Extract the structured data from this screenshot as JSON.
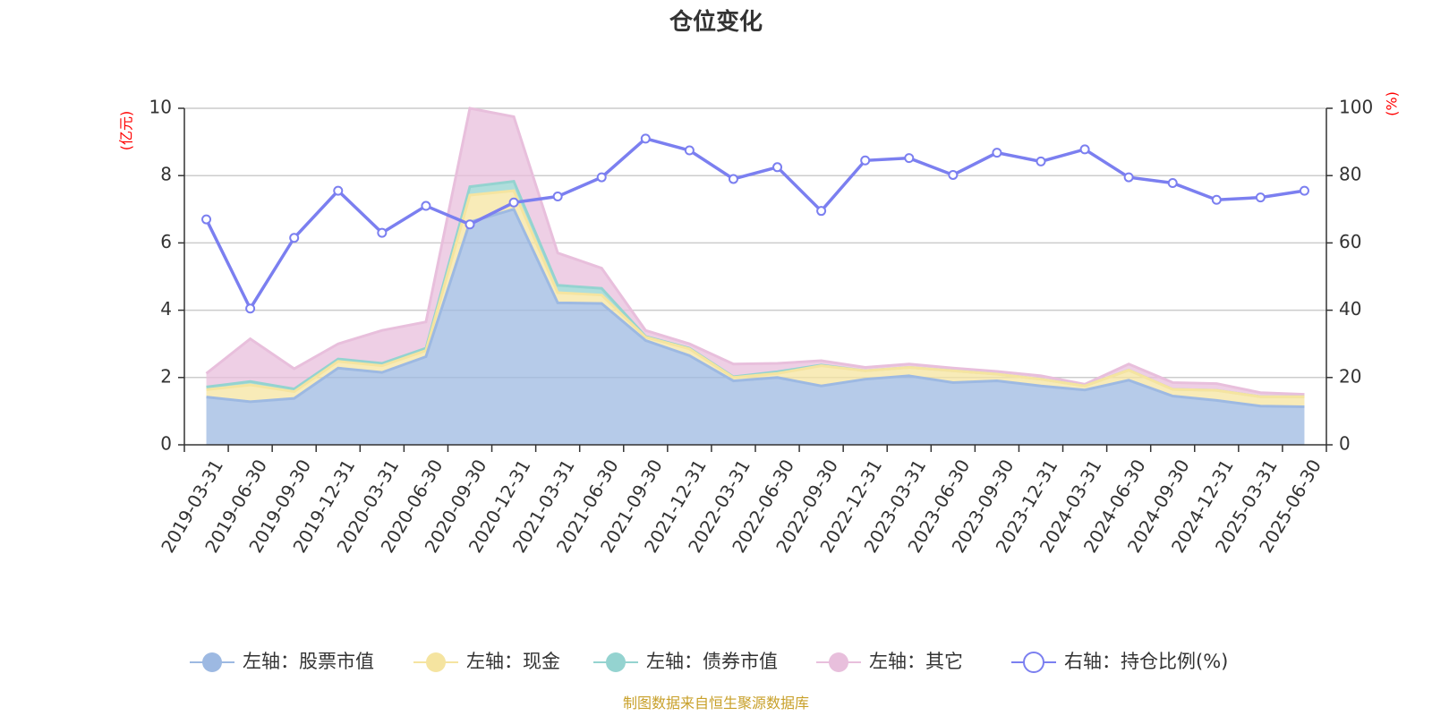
{
  "chart_data": {
    "type": "area",
    "title": "仓位变化",
    "left_axis_unit": "(亿元)",
    "right_axis_unit": "(%)",
    "source": "制图数据来自恒生聚源数据库",
    "x": [
      "2019-03-31",
      "2019-06-30",
      "2019-09-30",
      "2019-12-31",
      "2020-03-31",
      "2020-06-30",
      "2020-09-30",
      "2020-12-31",
      "2021-03-31",
      "2021-06-30",
      "2021-09-30",
      "2021-12-31",
      "2022-03-31",
      "2022-06-30",
      "2022-09-30",
      "2022-12-31",
      "2023-03-31",
      "2023-06-30",
      "2023-09-30",
      "2023-12-31",
      "2024-03-31",
      "2024-06-30",
      "2024-09-30",
      "2024-12-31",
      "2025-03-31",
      "2025-06-30"
    ],
    "left_axis": {
      "ylim": [
        0,
        10
      ],
      "ticks": [
        "0",
        "2",
        "4",
        "6",
        "8",
        "10"
      ]
    },
    "right_axis": {
      "ylim": [
        0,
        100
      ],
      "ticks": [
        "0",
        "20",
        "40",
        "60",
        "80",
        "100"
      ]
    },
    "grid": true,
    "legend_position": "bottom",
    "series": [
      {
        "name": "左轴：股票市值",
        "axis": "left",
        "stacked": true,
        "color": "#9db9e2",
        "values": [
          1.42,
          1.28,
          1.38,
          2.28,
          2.15,
          2.62,
          6.62,
          7.0,
          4.22,
          4.2,
          3.1,
          2.65,
          1.9,
          2.0,
          1.75,
          1.95,
          2.05,
          1.85,
          1.9,
          1.75,
          1.63,
          1.92,
          1.45,
          1.32,
          1.15,
          1.13
        ]
      },
      {
        "name": "左轴：现金",
        "axis": "left",
        "stacked": true,
        "color": "#f5e4a0",
        "values": [
          0.22,
          0.5,
          0.2,
          0.2,
          0.2,
          0.18,
          0.8,
          0.55,
          0.3,
          0.25,
          0.1,
          0.2,
          0.1,
          0.12,
          0.6,
          0.25,
          0.25,
          0.35,
          0.2,
          0.2,
          0.12,
          0.3,
          0.2,
          0.3,
          0.28,
          0.3
        ]
      },
      {
        "name": "左轴：债券市值",
        "axis": "left",
        "stacked": true,
        "color": "#94d3d0",
        "values": [
          0.08,
          0.1,
          0.08,
          0.07,
          0.07,
          0.07,
          0.25,
          0.28,
          0.22,
          0.2,
          0.02,
          0.02,
          0.02,
          0.05,
          0.02,
          0.0,
          0.0,
          0.0,
          0.0,
          0.0,
          0.0,
          0.0,
          0.0,
          0.0,
          0.0,
          0.0
        ]
      },
      {
        "name": "左轴：其它",
        "axis": "left",
        "stacked": true,
        "color": "#e8bfdc",
        "values": [
          0.4,
          1.27,
          0.6,
          0.45,
          0.98,
          0.78,
          2.33,
          1.92,
          0.96,
          0.6,
          0.18,
          0.13,
          0.38,
          0.25,
          0.13,
          0.1,
          0.1,
          0.08,
          0.08,
          0.1,
          0.05,
          0.18,
          0.2,
          0.2,
          0.12,
          0.07
        ]
      },
      {
        "name": "右轴：持仓比例(%)",
        "axis": "right",
        "type": "line",
        "color": "#7b7ff0",
        "values": [
          67,
          40.5,
          61.5,
          75.5,
          63,
          71,
          65.5,
          72,
          73.8,
          79.5,
          91,
          87.5,
          79,
          82.5,
          69.5,
          84.5,
          85.2,
          80.2,
          86.8,
          84.2,
          87.8,
          79.5,
          77.8,
          72.8,
          73.5,
          75.5
        ]
      }
    ]
  }
}
